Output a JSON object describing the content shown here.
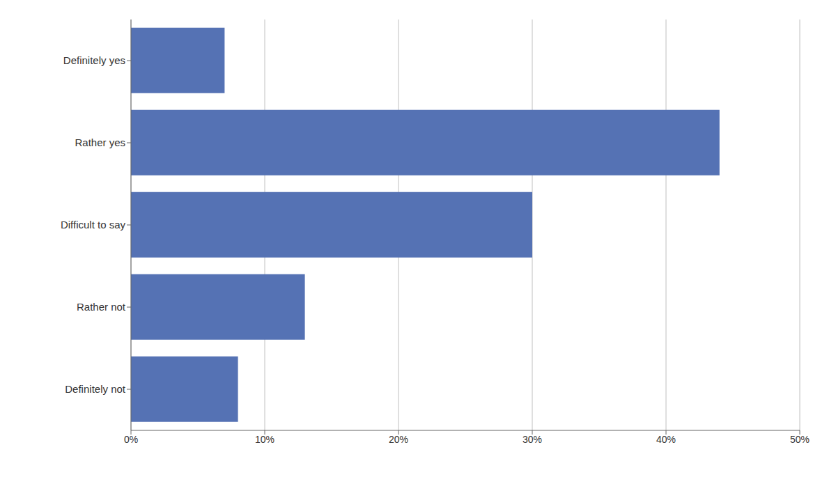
{
  "chart_data": {
    "type": "bar",
    "orientation": "horizontal",
    "categories": [
      "Definitely yes",
      "Rather yes",
      "Difficult to say",
      "Rather not",
      "Definitely not"
    ],
    "values": [
      7,
      44,
      30,
      13,
      8
    ],
    "color": "#5572b4",
    "xlim": [
      0,
      50
    ],
    "xticks": [
      {
        "value": 0,
        "label": "0%"
      },
      {
        "value": 10,
        "label": "10%"
      },
      {
        "value": 20,
        "label": "20%"
      },
      {
        "value": 30,
        "label": "30%"
      },
      {
        "value": 40,
        "label": "40%"
      },
      {
        "value": 50,
        "label": "50%"
      }
    ],
    "grid": true
  }
}
